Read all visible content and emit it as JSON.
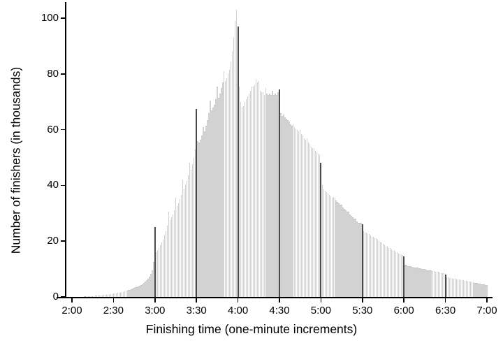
{
  "chart_data": {
    "type": "bar",
    "title": "",
    "xlabel": "Finishing time (one-minute increments)",
    "ylabel": "Number of finishers (in thousands)",
    "x_tick_labels": [
      "2:00",
      "2:30",
      "3:00",
      "3:30",
      "4:00",
      "4:30",
      "5:00",
      "5:30",
      "6:00",
      "6:30",
      "7:00"
    ],
    "x_tick_every_minutes": 30,
    "bin_minutes": 1,
    "x_range_minutes": [
      "2:00",
      "7:00"
    ],
    "y_ticks": [
      0,
      20,
      40,
      60,
      80,
      100
    ],
    "ylim": [
      0,
      105
    ],
    "grid": false,
    "legend": "none",
    "threshold_indices": [
      60,
      90,
      120,
      150,
      180,
      210,
      240,
      270
    ],
    "threshold_times": [
      "3:00",
      "3:30",
      "4:00",
      "4:30",
      "5:00",
      "5:30",
      "6:00",
      "6:30"
    ],
    "values": [
      0.02,
      0.02,
      0.03,
      0.03,
      0.04,
      0.05,
      0.06,
      0.08,
      0.1,
      0.15,
      0.2,
      0.22,
      0.25,
      0.28,
      0.3,
      0.32,
      0.35,
      0.38,
      0.42,
      0.46,
      0.5,
      0.55,
      0.6,
      0.65,
      0.72,
      0.78,
      0.85,
      0.92,
      1.0,
      1.1,
      1.2,
      1.25,
      1.3,
      1.4,
      1.5,
      1.6,
      1.7,
      1.85,
      2.0,
      2.15,
      2.3,
      2.45,
      2.6,
      2.8,
      3.0,
      3.2,
      3.4,
      3.6,
      3.8,
      4.0,
      4.3,
      4.6,
      5.0,
      5.4,
      5.9,
      6.4,
      7.2,
      8.2,
      9.5,
      12.5,
      25.0,
      16.0,
      16.5,
      17.5,
      18.5,
      19.5,
      20.5,
      22.0,
      23.5,
      25.5,
      30.5,
      27.5,
      28.5,
      29.5,
      31.0,
      35.5,
      32.5,
      33.5,
      35.0,
      36.5,
      42.0,
      38.5,
      40.0,
      41.5,
      43.5,
      48.0,
      45.5,
      47.5,
      50.0,
      53.0,
      67.5,
      56.0,
      55.5,
      56.5,
      58.0,
      61.0,
      59.5,
      61.5,
      63.5,
      66.0,
      70.5,
      67.0,
      68.0,
      69.0,
      71.0,
      75.5,
      71.5,
      73.0,
      75.0,
      77.0,
      81.0,
      77.5,
      78.5,
      80.0,
      81.5,
      84.5,
      88.0,
      93.0,
      99.0,
      103.0,
      97.0,
      75.5,
      70.0,
      68.0,
      68.5,
      70.0,
      71.0,
      72.0,
      73.0,
      74.0,
      75.5,
      75.5,
      76.0,
      78.0,
      77.0,
      77.5,
      74.0,
      73.5,
      73.5,
      72.5,
      75.0,
      73.0,
      72.5,
      73.0,
      72.5,
      74.0,
      72.5,
      73.0,
      72.5,
      73.5,
      74.5,
      66.0,
      65.0,
      65.5,
      64.5,
      64.0,
      63.5,
      63.0,
      62.0,
      61.5,
      62.0,
      61.0,
      60.5,
      60.0,
      59.5,
      60.0,
      58.5,
      58.0,
      57.0,
      56.5,
      57.0,
      55.5,
      55.0,
      54.0,
      53.5,
      53.5,
      52.5,
      52.0,
      51.5,
      51.0,
      48.0,
      40.0,
      38.5,
      38.0,
      37.5,
      37.0,
      36.5,
      36.0,
      35.5,
      35.5,
      35.5,
      34.5,
      34.0,
      33.5,
      33.0,
      33.0,
      32.0,
      31.5,
      31.0,
      30.5,
      30.5,
      29.5,
      29.0,
      28.5,
      28.0,
      28.0,
      27.0,
      26.5,
      26.5,
      26.5,
      26.0,
      23.5,
      23.0,
      23.0,
      22.5,
      22.5,
      22.0,
      21.5,
      21.5,
      21.0,
      21.0,
      20.5,
      20.0,
      19.5,
      19.5,
      19.0,
      18.5,
      18.0,
      18.0,
      17.5,
      17.5,
      17.0,
      16.5,
      16.5,
      16.0,
      16.0,
      15.5,
      15.5,
      15.0,
      15.0,
      14.5,
      11.5,
      11.5,
      11.0,
      11.0,
      11.0,
      10.8,
      10.6,
      10.5,
      10.5,
      10.5,
      10.2,
      10.2,
      10.0,
      10.0,
      10.0,
      9.8,
      9.6,
      9.5,
      9.5,
      9.5,
      9.2,
      9.2,
      9.0,
      9.0,
      9.0,
      8.8,
      8.6,
      8.5,
      8.5,
      8.0,
      7.0,
      7.0,
      6.8,
      6.8,
      6.6,
      6.5,
      6.4,
      6.3,
      6.2,
      6.2,
      6.0,
      6.0,
      5.9,
      5.8,
      5.8,
      5.6,
      5.5,
      5.4,
      5.3,
      5.2,
      5.1,
      5.0,
      4.9,
      4.8,
      4.7,
      4.6,
      4.5,
      4.4,
      4.3,
      4.2
    ],
    "colors": {
      "bar_fill": "#d2d2d2",
      "bar_top_edge": "#c6c6c6",
      "threshold_bar": "#4a4a4a",
      "axis": "#000000",
      "text": "#000000",
      "background": "#ffffff"
    }
  }
}
